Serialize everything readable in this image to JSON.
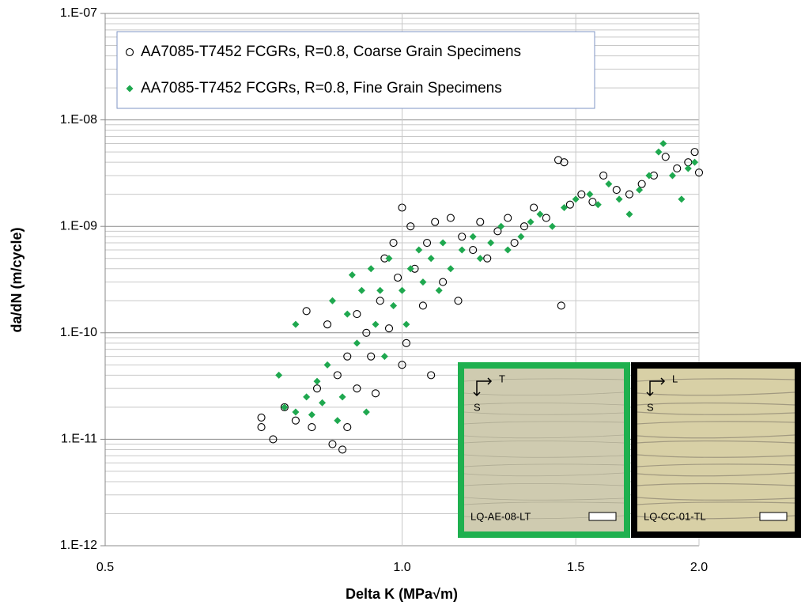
{
  "chart_data": {
    "type": "scatter",
    "x_label": "Delta K (MPa√m)",
    "y_label": "da/dN (m/cycle)",
    "xscale": "log",
    "yscale": "log",
    "xlim": [
      0.5,
      2.0
    ],
    "ylim": [
      1e-12,
      1e-07
    ],
    "xticks": [
      0.5,
      {
        "value": 1,
        "label": "1.0"
      },
      1.5,
      {
        "value": 2,
        "label": "2.0"
      }
    ],
    "yticks": [
      {
        "value": 1e-12,
        "label": "1.E-12"
      },
      {
        "value": 1e-11,
        "label": "1.E-11"
      },
      {
        "value": 1e-10,
        "label": "1.E-10"
      },
      {
        "value": 1e-09,
        "label": "1.E-09"
      },
      {
        "value": 1e-08,
        "label": "1.E-08"
      },
      {
        "value": 1e-07,
        "label": "1.E-07"
      }
    ],
    "grid": true,
    "legend": "upper left",
    "series": [
      {
        "name": "AA7085-T7452 FCGRs, R=0.8, Coarse Grain Specimens",
        "color": "#000000",
        "marker": "circle",
        "x": [
          0.72,
          0.72,
          0.74,
          0.76,
          0.78,
          0.8,
          0.81,
          0.82,
          0.84,
          0.85,
          0.86,
          0.87,
          0.88,
          0.88,
          0.9,
          0.9,
          0.92,
          0.93,
          0.94,
          0.95,
          0.96,
          0.97,
          0.98,
          0.99,
          1.0,
          1.0,
          1.01,
          1.02,
          1.03,
          1.05,
          1.06,
          1.07,
          1.08,
          1.1,
          1.12,
          1.14,
          1.15,
          1.18,
          1.2,
          1.22,
          1.25,
          1.28,
          1.3,
          1.33,
          1.36,
          1.4,
          1.44,
          1.45,
          1.46,
          1.48,
          1.52,
          1.56,
          1.6,
          1.65,
          1.7,
          1.75,
          1.8,
          1.85,
          1.9,
          1.95,
          1.98,
          2.0
        ],
        "values": [
          1.6e-11,
          1.3e-11,
          1e-11,
          2e-11,
          1.5e-11,
          1.6e-10,
          1.3e-11,
          3e-11,
          1.2e-10,
          9e-12,
          4e-11,
          8e-12,
          1.3e-11,
          6e-11,
          3e-11,
          1.5e-10,
          1e-10,
          6e-11,
          2.7e-11,
          2e-10,
          5e-10,
          1.1e-10,
          7e-10,
          3.3e-10,
          1.5e-09,
          5e-11,
          8e-11,
          1e-09,
          4e-10,
          1.8e-10,
          7e-10,
          4e-11,
          1.1e-09,
          3e-10,
          1.2e-09,
          2e-10,
          8e-10,
          6e-10,
          1.1e-09,
          5e-10,
          9e-10,
          1.2e-09,
          7e-10,
          1e-09,
          1.5e-09,
          1.2e-09,
          4.2e-09,
          1.8e-10,
          4e-09,
          1.6e-09,
          2e-09,
          1.7e-09,
          3e-09,
          2.2e-09,
          2e-09,
          2.5e-09,
          3e-09,
          4.5e-09,
          3.5e-09,
          4e-09,
          5e-09,
          3.2e-09
        ]
      },
      {
        "name": "AA7085-T7452 FCGRs, R=0.8, Fine Grain Specimens",
        "color": "#1fa84f",
        "marker": "diamond",
        "x": [
          0.75,
          0.76,
          0.78,
          0.78,
          0.8,
          0.81,
          0.82,
          0.83,
          0.84,
          0.85,
          0.86,
          0.87,
          0.88,
          0.89,
          0.9,
          0.91,
          0.92,
          0.93,
          0.94,
          0.95,
          0.96,
          0.97,
          0.98,
          1.0,
          1.01,
          1.02,
          1.04,
          1.05,
          1.07,
          1.09,
          1.1,
          1.12,
          1.15,
          1.18,
          1.2,
          1.23,
          1.26,
          1.28,
          1.32,
          1.35,
          1.38,
          1.42,
          1.46,
          1.5,
          1.55,
          1.58,
          1.62,
          1.66,
          1.7,
          1.74,
          1.78,
          1.82,
          1.84,
          1.88,
          1.92,
          1.95,
          1.98
        ],
        "values": [
          4e-11,
          2e-11,
          1.8e-11,
          1.2e-10,
          2.5e-11,
          1.7e-11,
          3.5e-11,
          2.2e-11,
          5e-11,
          2e-10,
          1.5e-11,
          2.5e-11,
          1.5e-10,
          3.5e-10,
          8e-11,
          2.5e-10,
          1.8e-11,
          4e-10,
          1.2e-10,
          2.5e-10,
          6e-11,
          5e-10,
          1.8e-10,
          2.5e-10,
          1.2e-10,
          4e-10,
          6e-10,
          3e-10,
          5e-10,
          2.5e-10,
          7e-10,
          4e-10,
          6e-10,
          8e-10,
          5e-10,
          7e-10,
          1e-09,
          6e-10,
          8e-10,
          1.1e-09,
          1.3e-09,
          1e-09,
          1.5e-09,
          1.8e-09,
          2e-09,
          1.6e-09,
          2.5e-09,
          1.8e-09,
          1.3e-09,
          2.2e-09,
          3e-09,
          5e-09,
          6e-09,
          3e-09,
          1.8e-09,
          3.5e-09,
          4e-09
        ]
      }
    ],
    "insets": [
      {
        "label": "LQ-AE-08-LT",
        "axis_h": "T",
        "axis_v": "S",
        "border_color": "#1fb04f"
      },
      {
        "label": "LQ-CC-01-TL",
        "axis_h": "L",
        "axis_v": "S",
        "border_color": "#000000"
      }
    ]
  }
}
